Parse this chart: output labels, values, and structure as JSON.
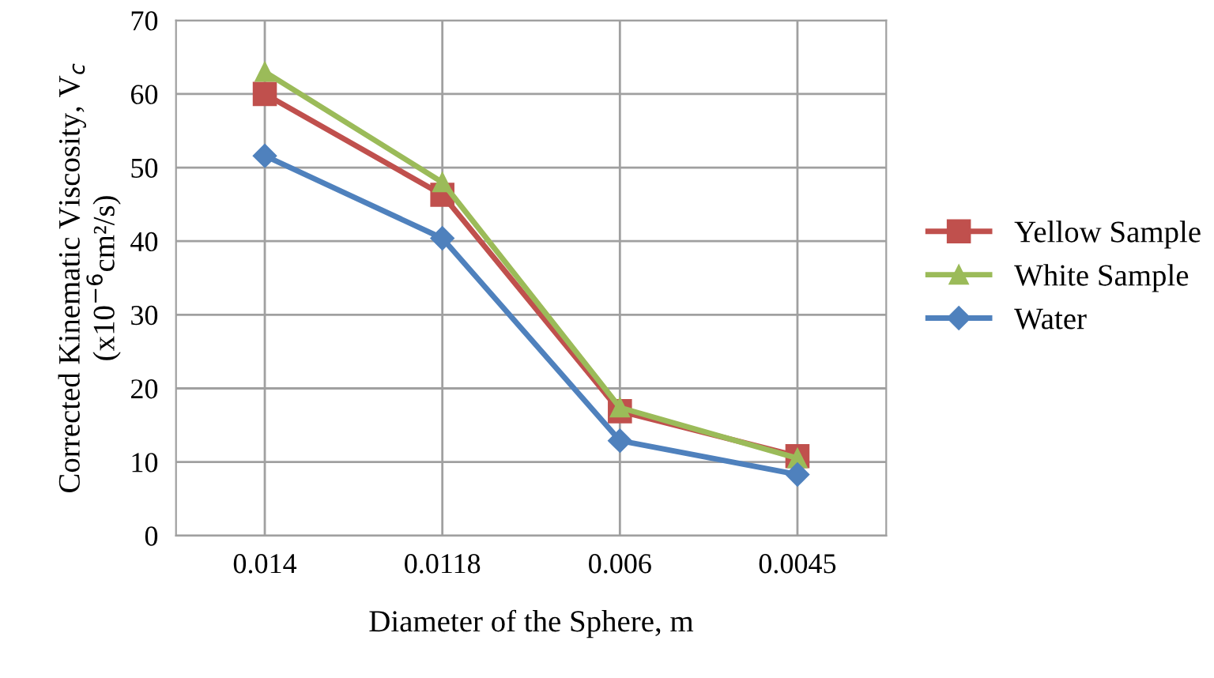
{
  "chart_data": {
    "type": "line",
    "xlabel": "Diameter of the Sphere, m",
    "ylabel": "Corrected Kinematic Viscosity, V$_{c}$\n(x10$^{−6}$cm²/s)",
    "categories": [
      "0.014",
      "0.0118",
      "0.006",
      "0.0045"
    ],
    "series": [
      {
        "name": "Yellow Sample",
        "color": "#c0504d",
        "marker": "square",
        "values": [
          60,
          46.3,
          16.9,
          10.8
        ]
      },
      {
        "name": "White Sample",
        "color": "#9bbb59",
        "marker": "triangle",
        "values": [
          63,
          48,
          17.4,
          10.5
        ]
      },
      {
        "name": "Water",
        "color": "#4f81bd",
        "marker": "diamond",
        "values": [
          51.6,
          40.4,
          12.9,
          8.3
        ]
      }
    ],
    "ylim": [
      0,
      70
    ],
    "yticks": [
      0,
      10,
      20,
      30,
      40,
      50,
      60,
      70
    ],
    "grid": true,
    "legend": "right"
  }
}
